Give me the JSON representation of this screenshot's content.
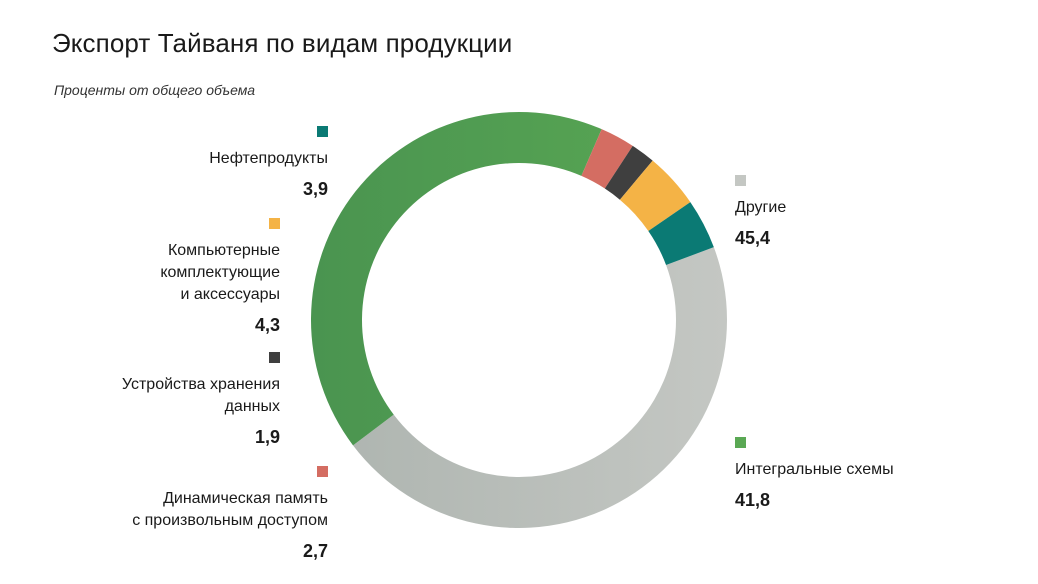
{
  "chart_data": {
    "type": "pie",
    "title": "Экспорт Тайваня по видам продукции",
    "subtitle": "Проценты от общего объема",
    "donut": true,
    "categories": [
      "Другие",
      "Интегральные схемы",
      "Динамическая память с произвольным доступом",
      "Устройства хранения данных",
      "Компьютерные комплектующие и аксессуары",
      "Нефтепродукты"
    ],
    "series": [
      {
        "values": [
          45.4,
          41.8,
          2.7,
          1.9,
          4.3,
          3.9
        ]
      }
    ],
    "slices": [
      {
        "label": "Другие",
        "value": 45.4,
        "value_label": "45,4",
        "color": "#c4c7c3",
        "color_dark": "#adb4af"
      },
      {
        "label": "Интегральные схемы",
        "value": 41.8,
        "value_label": "41,8",
        "color": "#5aa854",
        "color_dark": "#4a9450"
      },
      {
        "label": "Динамическая память\nс произвольным доступом",
        "value": 2.7,
        "value_label": "2,7",
        "color": "#d46d62",
        "color_dark": "#d46d62"
      },
      {
        "label": "Устройства хранения\nданных",
        "value": 1.9,
        "value_label": "1,9",
        "color": "#3f3f3f",
        "color_dark": "#3f3f3f"
      },
      {
        "label": "Компьютерные\nкомплектующие\nи аксессуары",
        "value": 4.3,
        "value_label": "4,3",
        "color": "#f4b346",
        "color_dark": "#f4b346"
      },
      {
        "label": "Нефтепродукты",
        "value": 3.9,
        "value_label": "3,9",
        "color": "#0b7a74",
        "color_dark": "#0b7a74"
      }
    ]
  }
}
